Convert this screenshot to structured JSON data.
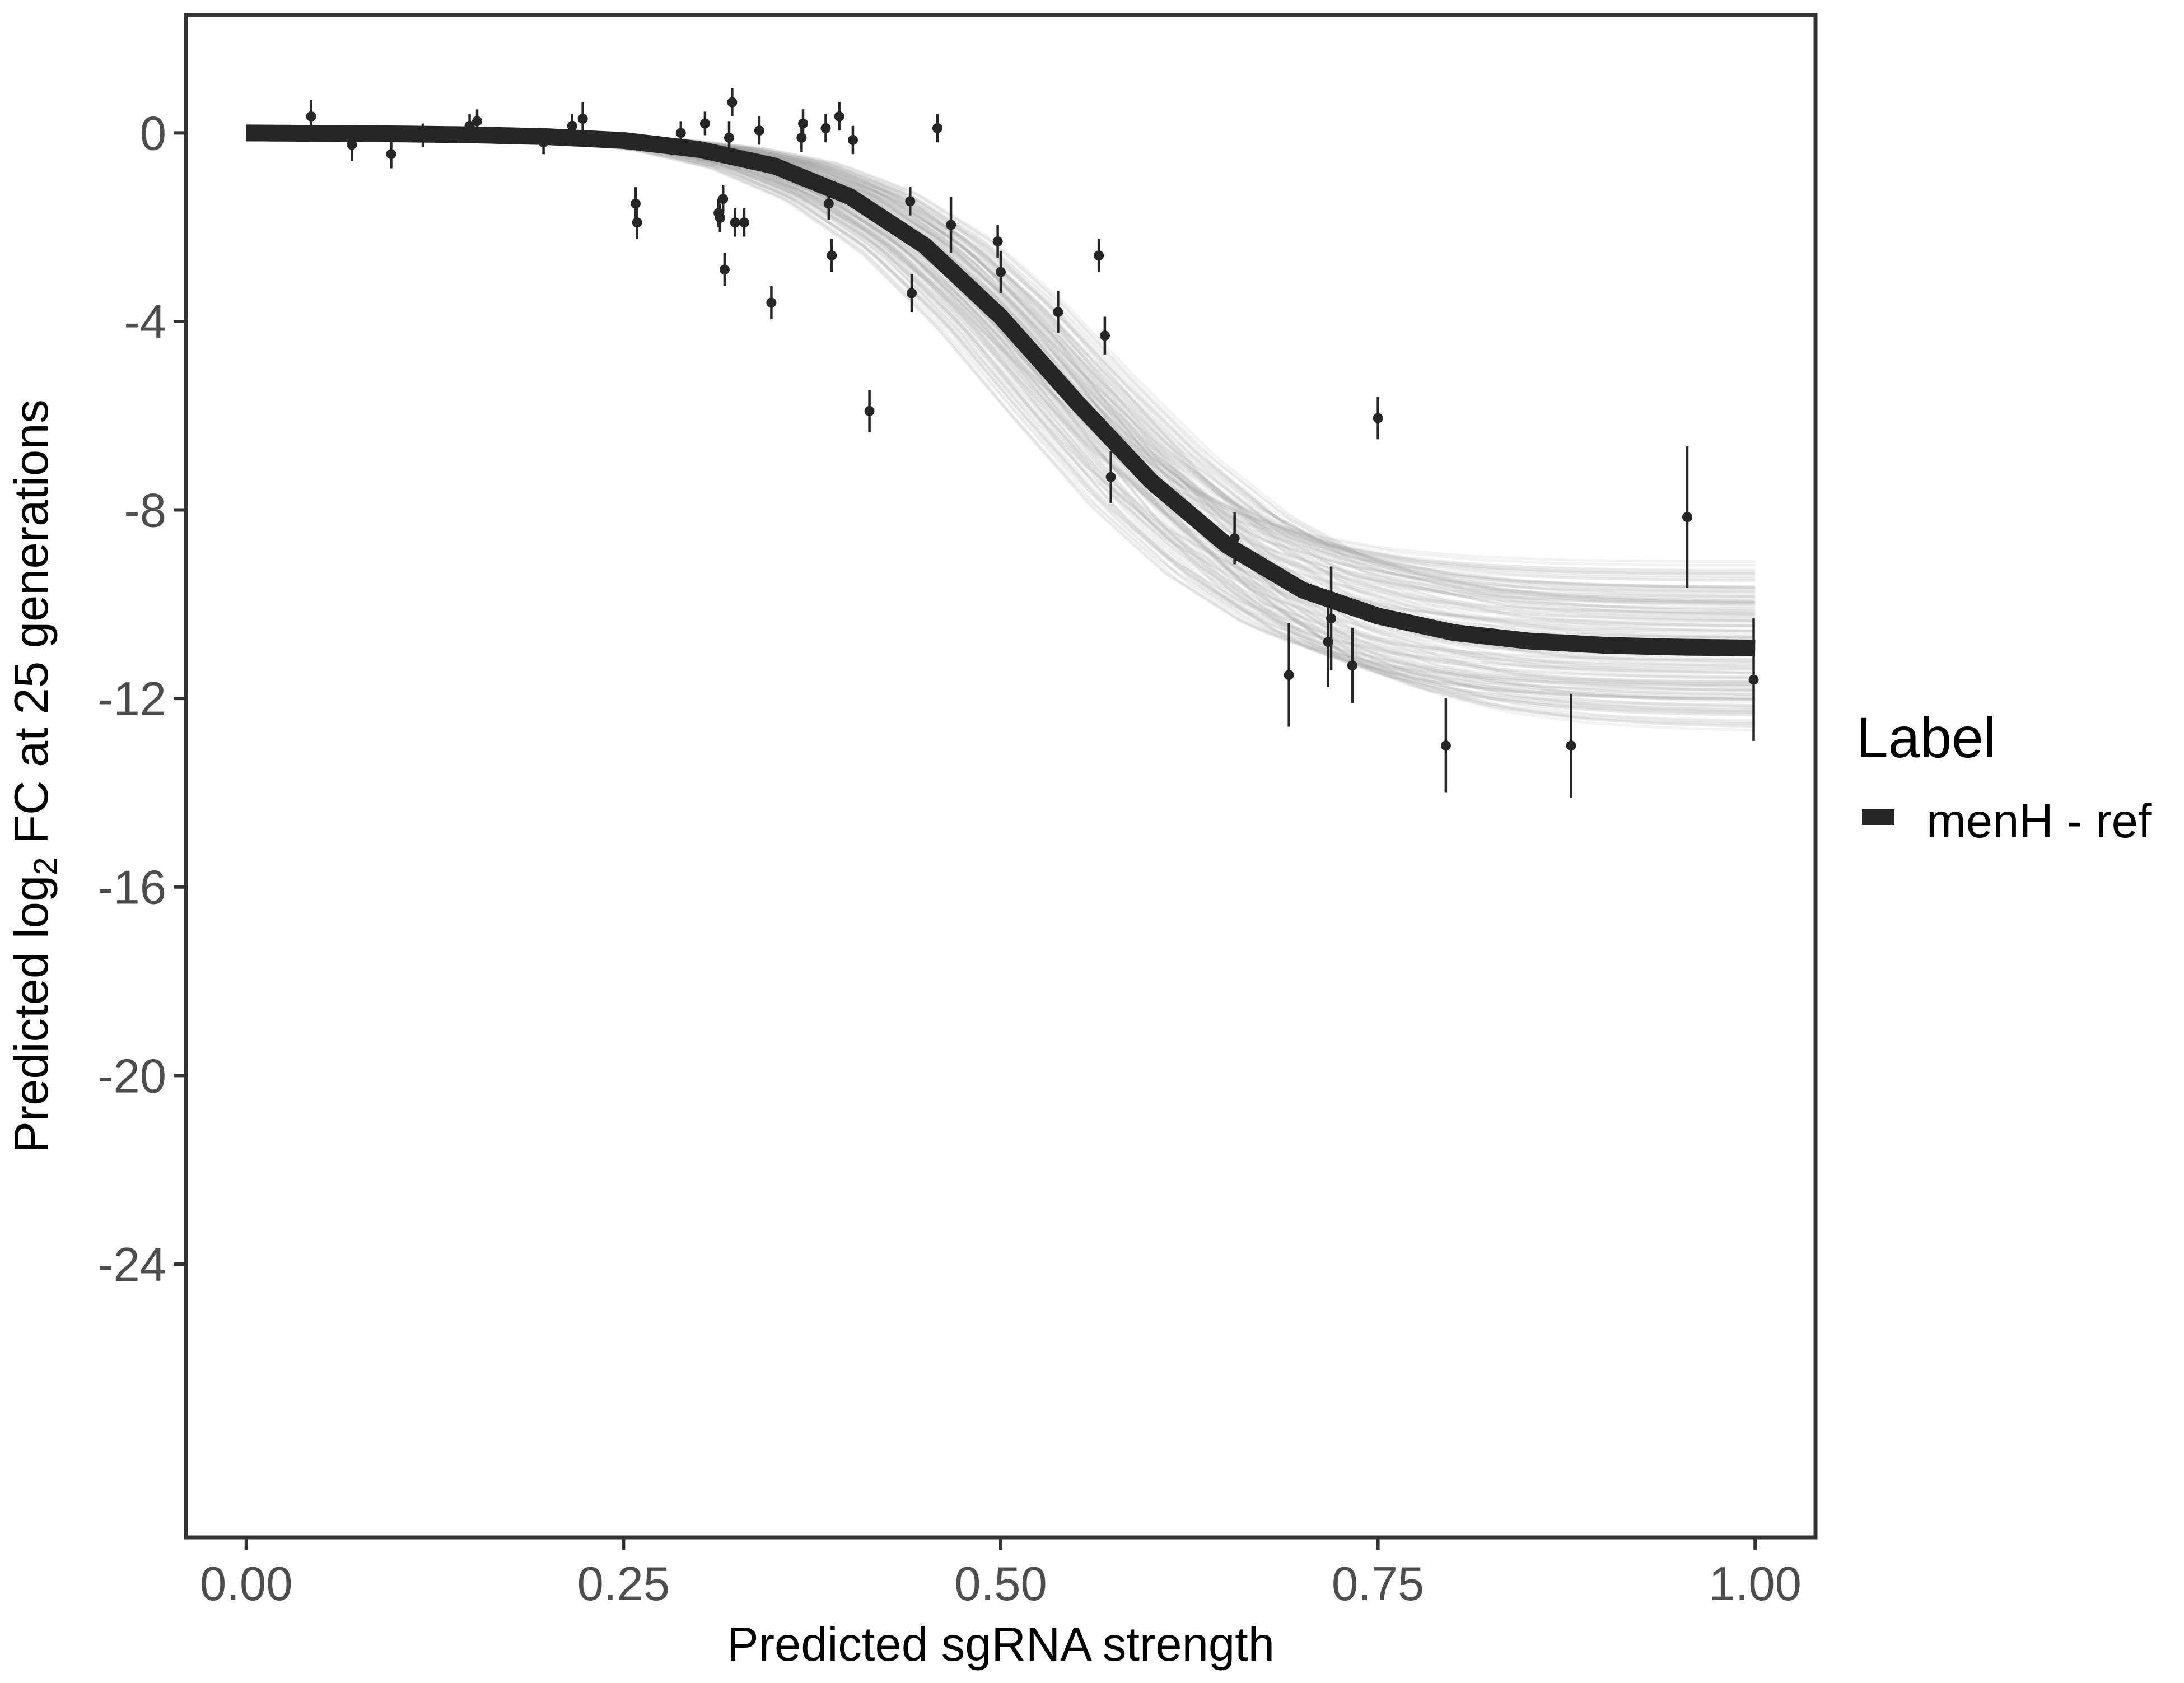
{
  "chart_data": {
    "type": "line",
    "title": "",
    "xlabel": "Predicted sgRNA strength",
    "ylabel_prefix": "Predicted  log",
    "ylabel_subscript": "2",
    "ylabel_suffix": " FC at 25 generations",
    "xlim": [
      -0.04,
      1.04
    ],
    "ylim": [
      -29.8,
      2.5
    ],
    "x_ticks": [
      0.0,
      0.25,
      0.5,
      0.75,
      1.0
    ],
    "x_tick_labels": [
      "0.00",
      "0.25",
      "0.50",
      "0.75",
      "1.00"
    ],
    "y_ticks": [
      0,
      -4,
      -8,
      -12,
      -16,
      -20,
      -24
    ],
    "y_tick_labels": [
      "0",
      "-4",
      "-8",
      "-12",
      "-16",
      "-20",
      "-24"
    ],
    "grid": false,
    "legend": {
      "title": "Label",
      "position": "right",
      "entries": [
        {
          "label": "menH - ref",
          "color": "#262626"
        }
      ]
    },
    "colors": {
      "fit_line": "#262626",
      "posterior_draws": "#9e9e9e",
      "points": "#262626",
      "panel_border": "#333333",
      "tick_label": "#4d4d4d"
    },
    "series": [
      {
        "name": "menH - ref",
        "kind": "fitted_curve",
        "x": [
          0.0,
          0.05,
          0.1,
          0.15,
          0.2,
          0.25,
          0.3,
          0.35,
          0.4,
          0.45,
          0.5,
          0.55,
          0.6,
          0.65,
          0.7,
          0.75,
          0.8,
          0.85,
          0.9,
          0.95,
          1.0
        ],
        "y": [
          0.0,
          -0.01,
          -0.02,
          -0.04,
          -0.08,
          -0.16,
          -0.35,
          -0.7,
          -1.35,
          -2.4,
          -3.9,
          -5.7,
          -7.4,
          -8.75,
          -9.7,
          -10.25,
          -10.6,
          -10.78,
          -10.87,
          -10.91,
          -10.93
        ]
      },
      {
        "name": "observed",
        "kind": "points_with_error_bars",
        "x": [
          0.043,
          0.07,
          0.096,
          0.117,
          0.148,
          0.153,
          0.197,
          0.216,
          0.223,
          0.258,
          0.259,
          0.288,
          0.304,
          0.313,
          0.314,
          0.316,
          0.317,
          0.32,
          0.322,
          0.324,
          0.33,
          0.34,
          0.348,
          0.368,
          0.369,
          0.384,
          0.386,
          0.388,
          0.393,
          0.402,
          0.413,
          0.44,
          0.441,
          0.458,
          0.467,
          0.498,
          0.5,
          0.565,
          0.569,
          0.573,
          0.538,
          0.655,
          0.691,
          0.717,
          0.719,
          0.733,
          0.75,
          0.795,
          0.878,
          0.955,
          0.999
        ],
        "y": [
          0.35,
          -0.25,
          -0.45,
          -0.05,
          0.15,
          0.25,
          -0.2,
          0.15,
          0.3,
          -1.5,
          -1.9,
          0.0,
          0.2,
          -1.7,
          -1.8,
          -1.4,
          -2.9,
          -0.1,
          0.65,
          -1.9,
          -1.9,
          0.05,
          -3.6,
          -0.1,
          0.2,
          0.1,
          -1.5,
          -2.6,
          0.35,
          -0.15,
          -5.9,
          -1.45,
          -3.4,
          0.1,
          -1.95,
          -2.3,
          -2.95,
          -2.6,
          -4.3,
          -7.3,
          -3.8,
          -8.6,
          -11.5,
          -10.8,
          -10.3,
          -11.3,
          -6.05,
          -13.0,
          -13.0,
          -8.15,
          -11.6
        ],
        "err": [
          0.35,
          0.35,
          0.3,
          0.25,
          0.25,
          0.25,
          0.25,
          0.25,
          0.35,
          0.35,
          0.35,
          0.25,
          0.25,
          0.3,
          0.3,
          0.3,
          0.35,
          0.35,
          0.3,
          0.3,
          0.3,
          0.3,
          0.35,
          0.3,
          0.3,
          0.3,
          0.35,
          0.35,
          0.3,
          0.3,
          0.45,
          0.3,
          0.4,
          0.3,
          0.6,
          0.35,
          0.45,
          0.35,
          0.4,
          0.55,
          0.45,
          0.55,
          1.1,
          0.95,
          1.1,
          0.8,
          0.45,
          1.0,
          1.1,
          1.5,
          1.3
        ]
      }
    ]
  }
}
